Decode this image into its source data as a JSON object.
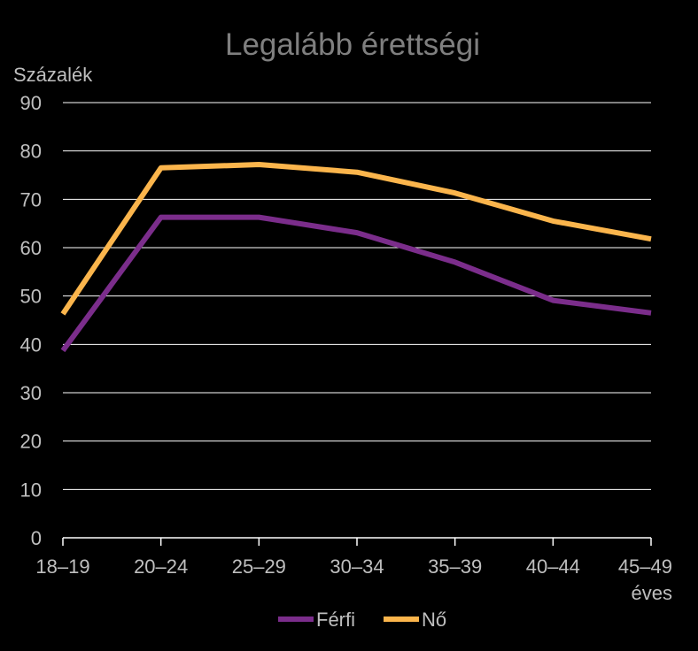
{
  "chart_data": {
    "type": "line",
    "title": "Legalább érettségi",
    "ylabel": "Százalék",
    "xlabel": "éves",
    "categories": [
      "18–19",
      "20–24",
      "25–29",
      "30–34",
      "35–39",
      "40–44",
      "45–49"
    ],
    "ylim": [
      0,
      90
    ],
    "yticks": [
      0,
      10,
      20,
      30,
      40,
      50,
      60,
      70,
      80,
      90
    ],
    "grid": true,
    "legend_position": "bottom",
    "series": [
      {
        "name": "Férfi",
        "color": "#7b2d8b",
        "values": [
          38.7,
          66.3,
          66.3,
          63.1,
          57.0,
          49.1,
          46.5
        ]
      },
      {
        "name": "Nő",
        "color": "#fbb54c",
        "values": [
          46.3,
          76.5,
          77.2,
          75.6,
          71.3,
          65.5,
          61.8
        ]
      }
    ]
  },
  "colors": {
    "background": "#000000",
    "text": "#bfbfbf",
    "title": "#7f7f7f",
    "grid": "#ffffff",
    "axis": "#ffffff"
  }
}
